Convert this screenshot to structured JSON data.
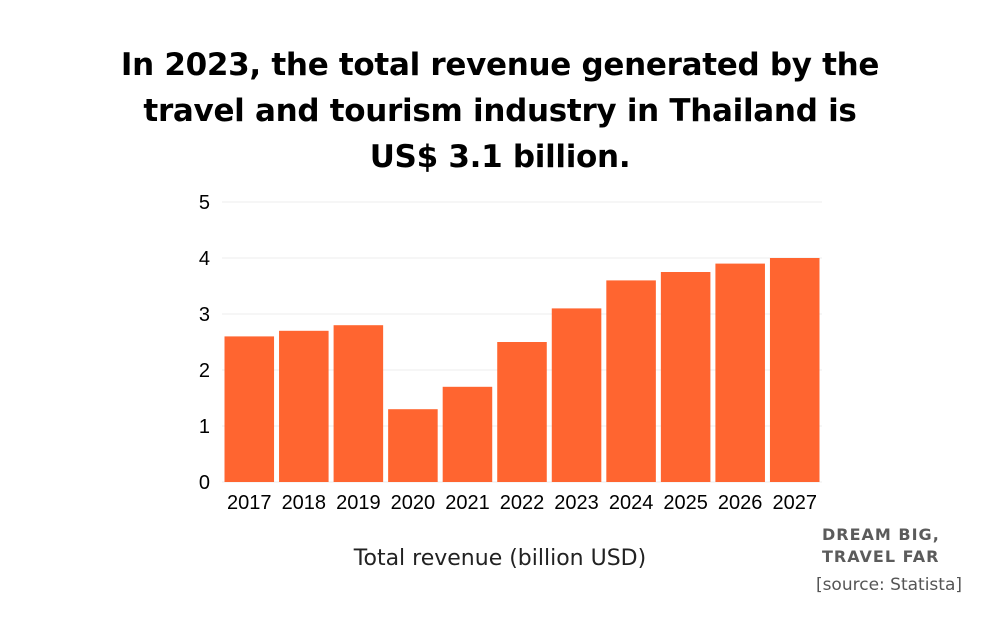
{
  "title_lines": [
    "In 2023, the total revenue generated by the",
    "travel and tourism industry in Thailand is",
    "US$ 3.1 billion."
  ],
  "brand": {
    "line1": "DREAM BIG,",
    "line2": "TRAVEL FAR"
  },
  "source": "[source: Statista]",
  "colors": {
    "bar": "#FF6530",
    "grid": "#ececec"
  },
  "chart_data": {
    "type": "bar",
    "categories": [
      "2017",
      "2018",
      "2019",
      "2020",
      "2021",
      "2022",
      "2023",
      "2024",
      "2025",
      "2026",
      "2027"
    ],
    "values": [
      2.6,
      2.7,
      2.8,
      1.3,
      1.7,
      2.5,
      3.1,
      3.6,
      3.75,
      3.9,
      4.0
    ],
    "title": "In 2023, the total revenue generated by the travel and tourism industry in Thailand is US$ 3.1 billion.",
    "xlabel": "Total revenue (billion USD)",
    "ylabel": "",
    "ylim": [
      0,
      5
    ],
    "yticks": [
      "0",
      "1",
      "2",
      "3",
      "4",
      "5"
    ],
    "grid": true,
    "legend": "none"
  }
}
